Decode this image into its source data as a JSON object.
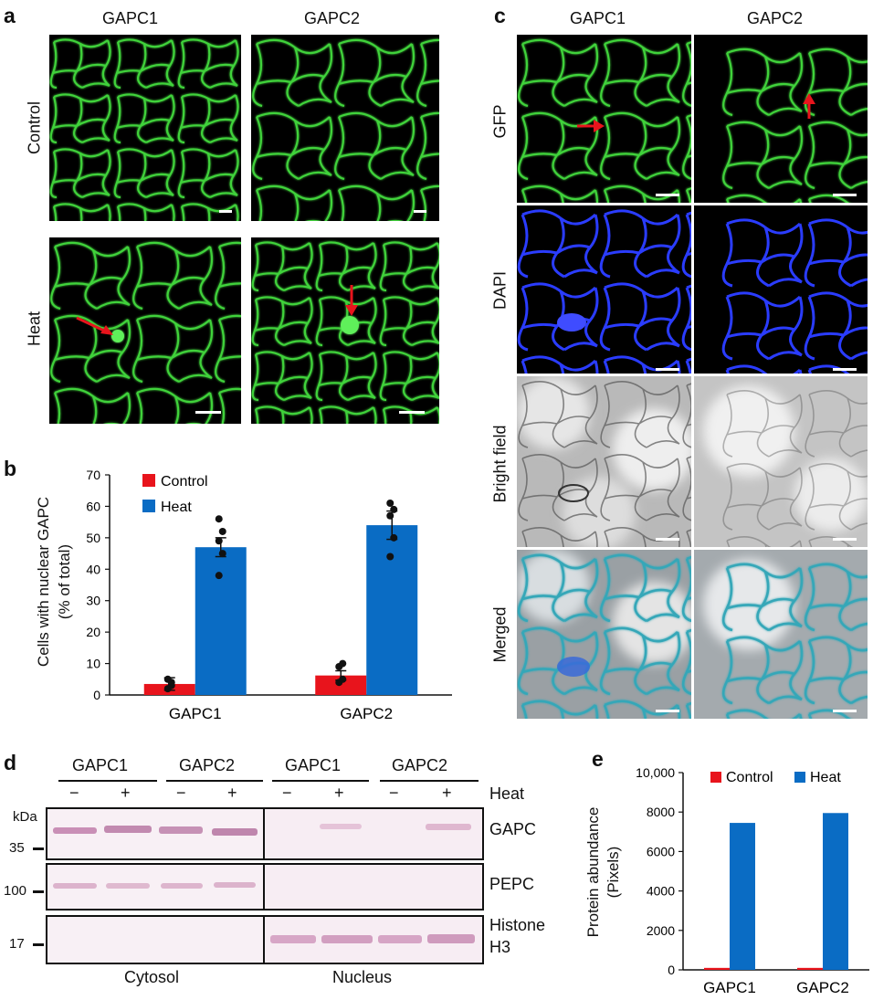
{
  "panel_a": {
    "label": "a",
    "columns": [
      "GAPC1",
      "GAPC2"
    ],
    "rows": [
      "Control",
      "Heat"
    ]
  },
  "panel_b": {
    "label": "b",
    "legend": [
      "Control",
      "Heat"
    ],
    "ylabel_line1": "Cells with nuclear GAPC",
    "ylabel_line2": "(% of total)"
  },
  "panel_c": {
    "label": "c",
    "columns": [
      "GAPC1",
      "GAPC2"
    ],
    "rows": [
      "GFP",
      "DAPI",
      "Bright field",
      "Merged"
    ]
  },
  "panel_d": {
    "label": "d",
    "groups": [
      "GAPC1",
      "GAPC2",
      "GAPC1",
      "GAPC2"
    ],
    "lanes": [
      "−",
      "+",
      "−",
      "+",
      "−",
      "+",
      "−",
      "+"
    ],
    "heat_label": "Heat",
    "kda_label": "kDa",
    "markers": [
      "35",
      "100",
      "17"
    ],
    "proteins": [
      "GAPC",
      "PEPC",
      "Histone",
      "H3"
    ],
    "fractions": [
      "Cytosol",
      "Nucleus"
    ]
  },
  "panel_e": {
    "label": "e",
    "legend": [
      "Control",
      "Heat"
    ],
    "ylabel_line1": "Protein abundance",
    "ylabel_line2": "(Pixels)"
  },
  "colors": {
    "control": "#e8141c",
    "heat": "#0a6cc4",
    "gfp": "#3fd23a",
    "dapi": "#2a3cff",
    "arrow": "#e8141c",
    "blot_band": "#d7a6c6"
  },
  "chart_data": [
    {
      "type": "bar",
      "panel": "b",
      "title": "",
      "xlabel": "",
      "ylabel": "Cells with nuclear GAPC (% of total)",
      "categories": [
        "GAPC1",
        "GAPC2"
      ],
      "series": [
        {
          "name": "Control",
          "values": [
            3.5,
            6.2
          ],
          "errors": [
            2.0,
            1.5
          ],
          "points": [
            [
              2,
              4,
              5,
              3
            ],
            [
              4,
              5,
              9,
              10
            ]
          ]
        },
        {
          "name": "Heat",
          "values": [
            47,
            54
          ],
          "errors": [
            3.0,
            4.5
          ],
          "points": [
            [
              38,
              45,
              49,
              52,
              56
            ],
            [
              44,
              50,
              57,
              59,
              61
            ]
          ]
        }
      ],
      "yticks": [
        "0",
        "10",
        "20",
        "30",
        "40",
        "50",
        "60",
        "70"
      ],
      "ylim": [
        0,
        70
      ],
      "legend_position": "top-left",
      "grid": false
    },
    {
      "type": "bar",
      "panel": "e",
      "title": "",
      "xlabel": "",
      "ylabel": "Protein abundance (Pixels)",
      "categories": [
        "GAPC1",
        "GAPC2"
      ],
      "series": [
        {
          "name": "Control",
          "values": [
            100,
            100
          ]
        },
        {
          "name": "Heat",
          "values": [
            7450,
            7950
          ]
        }
      ],
      "yticks": [
        "0",
        "2000",
        "4000",
        "6000",
        "8000",
        "10,000"
      ],
      "ylim": [
        0,
        10000
      ],
      "legend_position": "top",
      "grid": false
    }
  ]
}
